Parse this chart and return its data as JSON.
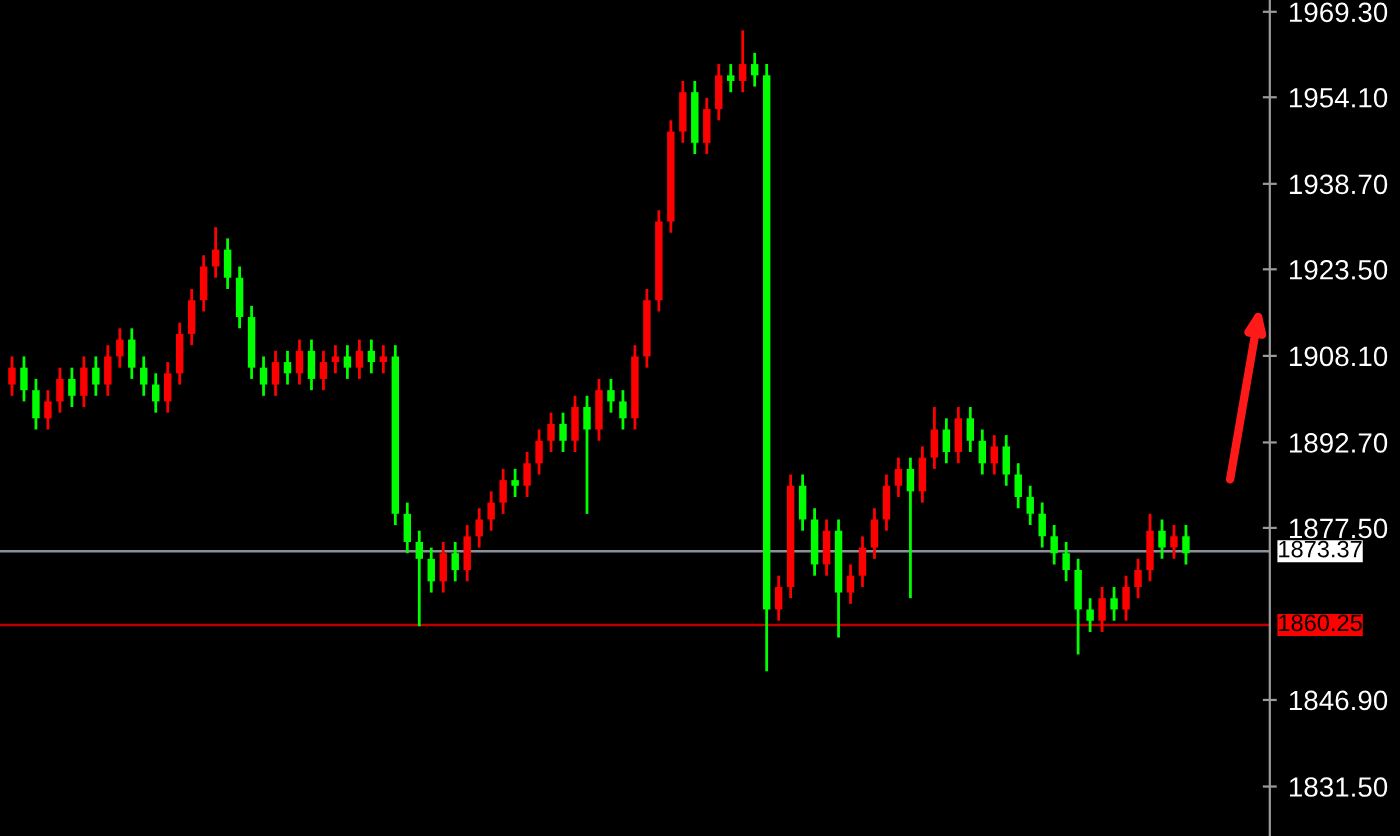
{
  "chart_data": {
    "type": "candlestick",
    "categories": [
      null,
      null,
      null,
      null,
      null,
      null,
      null,
      null,
      null,
      null,
      null,
      null,
      null,
      null,
      null,
      null,
      null,
      null,
      null,
      null,
      null,
      null,
      null,
      null,
      null,
      null,
      null,
      null,
      null,
      null,
      null,
      null,
      null,
      null,
      null,
      null,
      null,
      null,
      null,
      null,
      null,
      null,
      null,
      null,
      null,
      null,
      null,
      null,
      null,
      null,
      null,
      null,
      null,
      null,
      null,
      null,
      null,
      null,
      null,
      null,
      null,
      null,
      null,
      null,
      null,
      null,
      null,
      null,
      null,
      null,
      null,
      null,
      null,
      null,
      null,
      null,
      null,
      null,
      null,
      null,
      null,
      null,
      null,
      null,
      null,
      null,
      null,
      null,
      null,
      null,
      null,
      null,
      null,
      null,
      null,
      null,
      null,
      null,
      null
    ],
    "ohlc": [
      [
        1903,
        1908,
        1901,
        1906
      ],
      [
        1906,
        1908,
        1900,
        1902
      ],
      [
        1902,
        1904,
        1895,
        1897
      ],
      [
        1897,
        1902,
        1895,
        1900
      ],
      [
        1900,
        1906,
        1898,
        1904
      ],
      [
        1904,
        1906,
        1899,
        1901
      ],
      [
        1901,
        1908,
        1899,
        1906
      ],
      [
        1906,
        1908,
        1901,
        1903
      ],
      [
        1903,
        1910,
        1901,
        1908
      ],
      [
        1908,
        1913,
        1906,
        1911
      ],
      [
        1911,
        1913,
        1904,
        1906
      ],
      [
        1906,
        1908,
        1901,
        1903
      ],
      [
        1903,
        1905,
        1898,
        1900
      ],
      [
        1900,
        1907,
        1898,
        1905
      ],
      [
        1905,
        1914,
        1903,
        1912
      ],
      [
        1912,
        1920,
        1910,
        1918
      ],
      [
        1918,
        1926,
        1916,
        1924
      ],
      [
        1924,
        1931,
        1922,
        1927
      ],
      [
        1927,
        1929,
        1920,
        1922
      ],
      [
        1922,
        1924,
        1913,
        1915
      ],
      [
        1915,
        1917,
        1904,
        1906
      ],
      [
        1906,
        1908,
        1901,
        1903
      ],
      [
        1903,
        1909,
        1901,
        1907
      ],
      [
        1907,
        1909,
        1903,
        1905
      ],
      [
        1905,
        1911,
        1903,
        1909
      ],
      [
        1909,
        1911,
        1902,
        1904
      ],
      [
        1904,
        1909,
        1902,
        1907
      ],
      [
        1907,
        1910,
        1905,
        1908
      ],
      [
        1908,
        1910,
        1904,
        1906
      ],
      [
        1906,
        1911,
        1904,
        1909
      ],
      [
        1909,
        1911,
        1905,
        1907
      ],
      [
        1907,
        1910,
        1905,
        1908
      ],
      [
        1908,
        1910,
        1878,
        1880
      ],
      [
        1880,
        1882,
        1873,
        1875
      ],
      [
        1875,
        1877,
        1860,
        1872
      ],
      [
        1872,
        1874,
        1866,
        1868
      ],
      [
        1868,
        1875,
        1866,
        1873
      ],
      [
        1873,
        1875,
        1868,
        1870
      ],
      [
        1870,
        1878,
        1868,
        1876
      ],
      [
        1876,
        1881,
        1874,
        1879
      ],
      [
        1879,
        1884,
        1877,
        1882
      ],
      [
        1882,
        1888,
        1880,
        1886
      ],
      [
        1886,
        1888,
        1883,
        1885
      ],
      [
        1885,
        1891,
        1883,
        1889
      ],
      [
        1889,
        1895,
        1887,
        1893
      ],
      [
        1893,
        1898,
        1891,
        1896
      ],
      [
        1896,
        1898,
        1891,
        1893
      ],
      [
        1893,
        1901,
        1891,
        1899
      ],
      [
        1899,
        1901,
        1880,
        1895
      ],
      [
        1895,
        1904,
        1893,
        1902
      ],
      [
        1902,
        1904,
        1898,
        1900
      ],
      [
        1900,
        1902,
        1895,
        1897
      ],
      [
        1897,
        1910,
        1895,
        1908
      ],
      [
        1908,
        1920,
        1906,
        1918
      ],
      [
        1918,
        1934,
        1916,
        1932
      ],
      [
        1932,
        1950,
        1930,
        1948
      ],
      [
        1948,
        1957,
        1946,
        1955
      ],
      [
        1955,
        1957,
        1944,
        1946
      ],
      [
        1946,
        1954,
        1944,
        1952
      ],
      [
        1952,
        1960,
        1950,
        1958
      ],
      [
        1958,
        1960,
        1955,
        1957
      ],
      [
        1957,
        1966,
        1955,
        1960
      ],
      [
        1960,
        1962,
        1956,
        1958
      ],
      [
        1958,
        1960,
        1852,
        1863
      ],
      [
        1863,
        1869,
        1861,
        1867
      ],
      [
        1867,
        1887,
        1865,
        1885
      ],
      [
        1885,
        1887,
        1877,
        1879
      ],
      [
        1879,
        1881,
        1869,
        1871
      ],
      [
        1871,
        1879,
        1869,
        1877
      ],
      [
        1877,
        1879,
        1858,
        1866
      ],
      [
        1866,
        1871,
        1864,
        1869
      ],
      [
        1869,
        1876,
        1867,
        1874
      ],
      [
        1874,
        1881,
        1872,
        1879
      ],
      [
        1879,
        1887,
        1877,
        1885
      ],
      [
        1885,
        1890,
        1883,
        1888
      ],
      [
        1888,
        1890,
        1865,
        1884
      ],
      [
        1884,
        1892,
        1882,
        1890
      ],
      [
        1890,
        1899,
        1888,
        1895
      ],
      [
        1895,
        1897,
        1889,
        1891
      ],
      [
        1891,
        1899,
        1889,
        1897
      ],
      [
        1897,
        1899,
        1891,
        1893
      ],
      [
        1893,
        1895,
        1887,
        1889
      ],
      [
        1889,
        1894,
        1887,
        1892
      ],
      [
        1892,
        1894,
        1885,
        1887
      ],
      [
        1887,
        1889,
        1881,
        1883
      ],
      [
        1883,
        1885,
        1878,
        1880
      ],
      [
        1880,
        1882,
        1874,
        1876
      ],
      [
        1876,
        1878,
        1871,
        1873
      ],
      [
        1873,
        1875,
        1868,
        1870
      ],
      [
        1870,
        1872,
        1855,
        1863
      ],
      [
        1863,
        1865,
        1859,
        1861
      ],
      [
        1861,
        1867,
        1859,
        1865
      ],
      [
        1865,
        1867,
        1861,
        1863
      ],
      [
        1863,
        1869,
        1861,
        1867
      ],
      [
        1867,
        1872,
        1865,
        1870
      ],
      [
        1870,
        1880,
        1868,
        1877
      ],
      [
        1877,
        1879,
        1872,
        1874
      ],
      [
        1874,
        1878,
        1872,
        1876
      ],
      [
        1876,
        1878,
        1871,
        1873
      ]
    ],
    "colors": [
      "#ff0000",
      "#00ff00",
      "#00ff00",
      "#ff0000",
      "#ff0000",
      "#00ff00",
      "#ff0000",
      "#00ff00",
      "#ff0000",
      "#ff0000",
      "#00ff00",
      "#00ff00",
      "#00ff00",
      "#ff0000",
      "#ff0000",
      "#ff0000",
      "#ff0000",
      "#ff0000",
      "#00ff00",
      "#00ff00",
      "#00ff00",
      "#00ff00",
      "#ff0000",
      "#00ff00",
      "#ff0000",
      "#00ff00",
      "#ff0000",
      "#ff0000",
      "#00ff00",
      "#ff0000",
      "#00ff00",
      "#ff0000",
      "#00ff00",
      "#00ff00",
      "#00ff00",
      "#00ff00",
      "#ff0000",
      "#00ff00",
      "#ff0000",
      "#ff0000",
      "#ff0000",
      "#ff0000",
      "#00ff00",
      "#ff0000",
      "#ff0000",
      "#ff0000",
      "#00ff00",
      "#ff0000",
      "#00ff00",
      "#ff0000",
      "#00ff00",
      "#00ff00",
      "#ff0000",
      "#ff0000",
      "#ff0000",
      "#ff0000",
      "#ff0000",
      "#00ff00",
      "#ff0000",
      "#ff0000",
      "#00ff00",
      "#ff0000",
      "#00ff00",
      "#00ff00",
      "#ff0000",
      "#ff0000",
      "#00ff00",
      "#00ff00",
      "#ff0000",
      "#00ff00",
      "#ff0000",
      "#ff0000",
      "#ff0000",
      "#ff0000",
      "#ff0000",
      "#00ff00",
      "#ff0000",
      "#ff0000",
      "#00ff00",
      "#ff0000",
      "#00ff00",
      "#00ff00",
      "#ff0000",
      "#00ff00",
      "#00ff00",
      "#00ff00",
      "#00ff00",
      "#00ff00",
      "#00ff00",
      "#00ff00",
      "#00ff00",
      "#ff0000",
      "#00ff00",
      "#ff0000",
      "#ff0000",
      "#ff0000",
      "#00ff00",
      "#ff0000",
      "#00ff00"
    ],
    "ylim": [
      1822.7,
      1971.4
    ],
    "yticks": [
      {
        "value": 1831.5,
        "label": "1831.50"
      },
      {
        "value": 1846.9,
        "label": "1846.90"
      },
      {
        "value": 1877.5,
        "label": "1877.50"
      },
      {
        "value": 1892.7,
        "label": "1892.70"
      },
      {
        "value": 1908.1,
        "label": "1908.10"
      },
      {
        "value": 1923.5,
        "label": "1923.50"
      },
      {
        "value": 1938.7,
        "label": "1938.70"
      },
      {
        "value": 1954.1,
        "label": "1954.10"
      },
      {
        "value": 1969.3,
        "label": "1969.30"
      }
    ],
    "ref_lines": [
      {
        "axis": "y",
        "value": 1873.37,
        "label": "1873.37",
        "color": "#8a9099",
        "line_style": "solid"
      },
      {
        "axis": "y",
        "value": 1860.25,
        "label": "1860.25",
        "color": "#c00000",
        "line_style": "solid"
      }
    ],
    "grid": false
  }
}
